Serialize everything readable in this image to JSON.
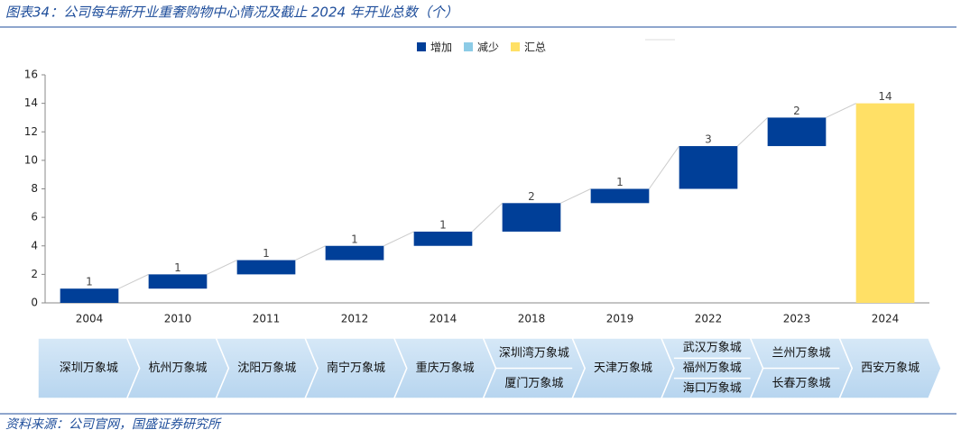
{
  "title": "图表34：公司每年新开业重奢购物中心情况及截止 2024 年开业总数（个）",
  "source": "资料来源：公司官网，国盛证券研究所",
  "chart_data": {
    "type": "waterfall",
    "categories": [
      "2004",
      "2010",
      "2011",
      "2012",
      "2014",
      "2018",
      "2019",
      "2022",
      "2023",
      "2024"
    ],
    "values": [
      1,
      1,
      1,
      1,
      1,
      2,
      1,
      3,
      2,
      14
    ],
    "total_last": true,
    "legend_items": [
      {
        "name": "增加",
        "color": "#003f98"
      },
      {
        "name": "减少",
        "color": "#8ccbe6"
      },
      {
        "name": "汇总",
        "color": "#ffe066"
      }
    ],
    "ylim": [
      0,
      16
    ],
    "yticks": [
      0,
      2,
      4,
      6,
      8,
      10,
      12,
      14,
      16
    ],
    "grid": false
  },
  "timeline": [
    [
      "深圳万象城"
    ],
    [
      "杭州万象城"
    ],
    [
      "沈阳万象城"
    ],
    [
      "南宁万象城"
    ],
    [
      "重庆万象城"
    ],
    [
      "深圳湾万象城",
      "厦门万象城"
    ],
    [
      "天津万象城"
    ],
    [
      "武汉万象城",
      "福州万象城",
      "海口万象城"
    ],
    [
      "兰州万象城",
      "长春万象城"
    ],
    [
      "西安万象城"
    ]
  ]
}
